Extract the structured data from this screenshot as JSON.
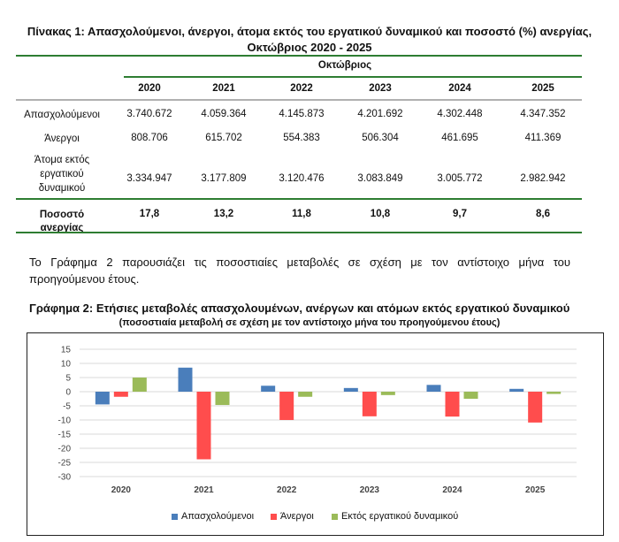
{
  "table": {
    "title_line1": "Πίνακας 1: Απασχολούμενοι, άνεργοι, άτομα εκτός του εργατικού δυναμικού και ποσοστό (%) ανεργίας,",
    "title_line2": "Οκτώβριος 2020 - 2025",
    "group_header": "Οκτώβριος",
    "years": [
      "2020",
      "2021",
      "2022",
      "2023",
      "2024",
      "2025"
    ],
    "rows": [
      {
        "label": "Απασχολούμενοι",
        "values": [
          "3.740.672",
          "4.059.364",
          "4.145.873",
          "4.201.692",
          "4.302.448",
          "4.347.352"
        ]
      },
      {
        "label": "Άνεργοι",
        "values": [
          "808.706",
          "615.702",
          "554.383",
          "506.304",
          "461.695",
          "411.369"
        ]
      },
      {
        "label": "Άτομα εκτός εργατικού δυναμικού",
        "label_lines": [
          "Άτομα εκτός",
          "εργατικού",
          "δυναμικού"
        ],
        "values": [
          "3.334.947",
          "3.177.809",
          "3.120.476",
          "3.083.849",
          "3.005.772",
          "2.982.942"
        ]
      }
    ],
    "rate_row": {
      "label": "Ποσοστό ανεργίας",
      "values": [
        "17,8",
        "13,2",
        "11,8",
        "10,8",
        "9,7",
        "8,6"
      ]
    }
  },
  "paragraph_line1": "Το Γράφημα 2 παρουσιάζει τις ποσοστιαίες μεταβολές σε σχέση με τον αντίστοιχο μήνα του",
  "paragraph_line2": "προηγούμενου έτους.",
  "chart_data": {
    "type": "bar",
    "title": "Γράφημα 2: Ετήσιες μεταβολές απασχολουμένων, ανέργων και ατόμων εκτός εργατικού δυναμικού",
    "subtitle": "(ποσοστιαία μεταβολή σε σχέση με τον αντίστοιχο μήνα του προηγούμενου έτους)",
    "categories": [
      "2020",
      "2021",
      "2022",
      "2023",
      "2024",
      "2025"
    ],
    "ylim": [
      -30,
      15
    ],
    "yticks": [
      15,
      10,
      5,
      0,
      -5,
      -10,
      -15,
      -20,
      -25,
      -30
    ],
    "grid": true,
    "legend_position": "bottom",
    "series": [
      {
        "name": "Απασχολούμενοι",
        "color": "#4a7ebb",
        "values": [
          -4.5,
          8.5,
          2.1,
          1.3,
          2.4,
          1.0
        ]
      },
      {
        "name": "Άνεργοι",
        "color": "#ff4d4d",
        "values": [
          -1.8,
          -23.9,
          -10.0,
          -8.7,
          -8.8,
          -10.9
        ]
      },
      {
        "name": "Εκτός εργατικού δυναμικού",
        "color": "#9bbb59",
        "values": [
          5.0,
          -4.7,
          -1.8,
          -1.2,
          -2.5,
          -0.8
        ]
      }
    ]
  }
}
